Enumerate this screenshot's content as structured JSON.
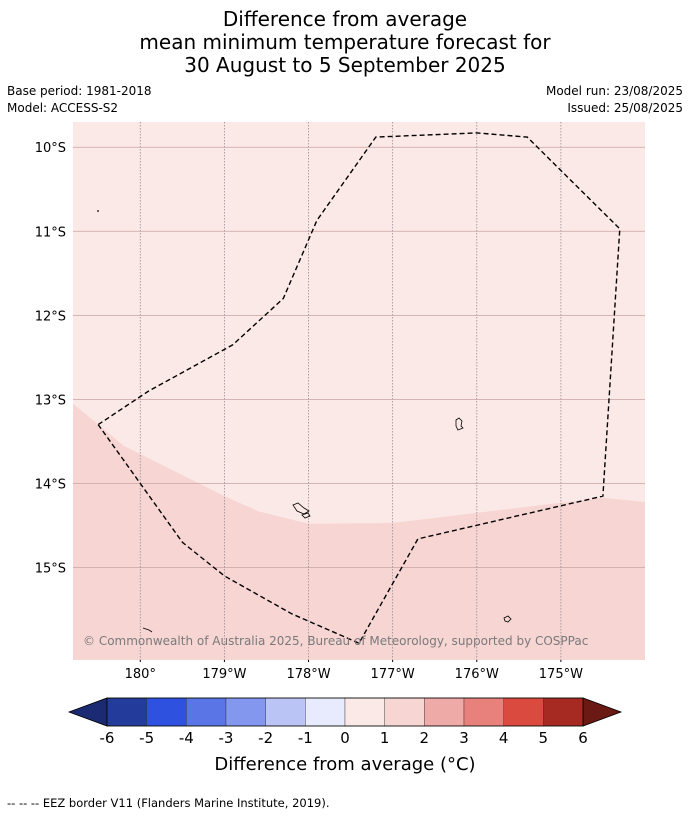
{
  "title_lines": [
    "Difference from average",
    "mean minimum temperature forecast for",
    "30 August to 5 September 2025"
  ],
  "meta_left": [
    "Base period: 1981-2018",
    "Model: ACCESS-S2"
  ],
  "meta_right": [
    "Model run: 23/08/2025",
    "Issued: 25/08/2025"
  ],
  "map": {
    "lon_range": [
      -180.8,
      -174.0
    ],
    "lat_range": [
      -16.1,
      -9.7
    ],
    "lat_ticks": [
      {
        "value": -10,
        "label": "10°S"
      },
      {
        "value": -11,
        "label": "11°S"
      },
      {
        "value": -12,
        "label": "12°S"
      },
      {
        "value": -13,
        "label": "13°S"
      },
      {
        "value": -14,
        "label": "14°S"
      },
      {
        "value": -15,
        "label": "15°S"
      }
    ],
    "lon_ticks": [
      {
        "value": -180,
        "label": "180°"
      },
      {
        "value": -179,
        "label": "179°W"
      },
      {
        "value": -178,
        "label": "178°W"
      },
      {
        "value": -177,
        "label": "177°W"
      },
      {
        "value": -176,
        "label": "176°W"
      },
      {
        "value": -175,
        "label": "175°W"
      }
    ],
    "fields": [
      {
        "range": "0 to 1",
        "color": "#fbe9e7"
      },
      {
        "range": "1 to 2",
        "color": "#f6d5d3"
      }
    ],
    "band_boundary": [
      [
        -180.8,
        -13.05
      ],
      [
        -180.2,
        -13.55
      ],
      [
        -179.0,
        -14.15
      ],
      [
        -178.6,
        -14.33
      ],
      [
        -178.0,
        -14.48
      ],
      [
        -177.0,
        -14.47
      ],
      [
        -176.0,
        -14.35
      ],
      [
        -175.0,
        -14.23
      ],
      [
        -174.5,
        -14.17
      ],
      [
        -174.0,
        -14.22
      ]
    ],
    "eez_border": [
      [
        -180.5,
        -13.3
      ],
      [
        -179.9,
        -12.9
      ],
      [
        -178.9,
        -12.35
      ],
      [
        -178.3,
        -11.8
      ],
      [
        -177.9,
        -10.87
      ],
      [
        -177.2,
        -9.88
      ],
      [
        -176.0,
        -9.83
      ],
      [
        -175.4,
        -9.88
      ],
      [
        -174.3,
        -10.97
      ],
      [
        -174.5,
        -14.15
      ],
      [
        -176.7,
        -14.66
      ],
      [
        -177.4,
        -15.9
      ],
      [
        -178.2,
        -15.55
      ],
      [
        -179.0,
        -15.1
      ],
      [
        -179.5,
        -14.7
      ],
      [
        -180.0,
        -14.0
      ],
      [
        -180.5,
        -13.3
      ]
    ],
    "copyright": "© Commonwealth of Australia 2025, Bureau of Meteorology, supported by COSPPac"
  },
  "colorbar": {
    "label": "Difference from average (°C)",
    "ticks": [
      "-6",
      "-5",
      "-4",
      "-3",
      "-2",
      "-1",
      "0",
      "1",
      "2",
      "3",
      "4",
      "5",
      "6"
    ],
    "under_color": "#1b2a72",
    "over_color": "#6b1a13",
    "colors": [
      "#233c9c",
      "#2f51e0",
      "#5a75e6",
      "#8497ee",
      "#bac4f5",
      "#e8ebfd",
      "#fbe9e7",
      "#f6d5d3",
      "#eeaaa7",
      "#e8817b",
      "#da4a3f",
      "#a72a22"
    ]
  },
  "footnote": "-- -- -- EEZ border V11 (Flanders Marine Institute, 2019)."
}
